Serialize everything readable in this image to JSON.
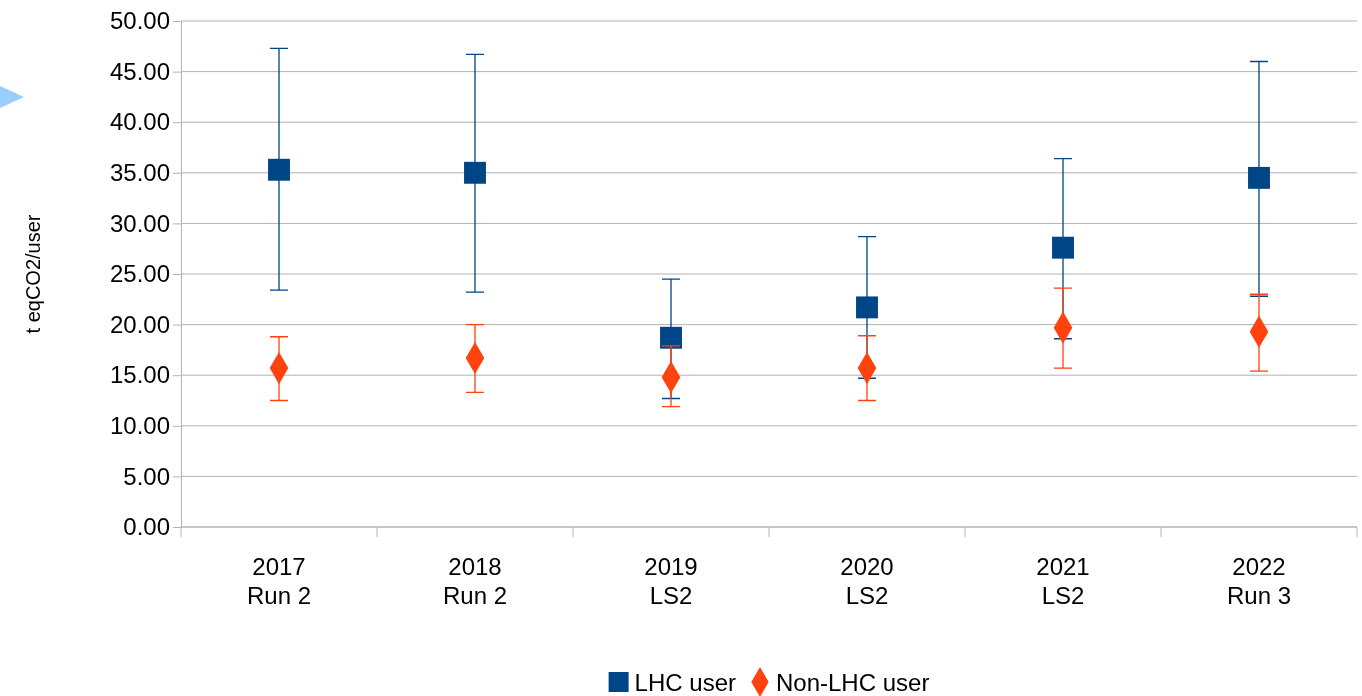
{
  "chart_data": {
    "type": "scatter",
    "ylabel": "t eqCO2/user",
    "categories": [
      "2017\nRun 2",
      "2018\nRun 2",
      "2019\nLS2",
      "2020\nLS2",
      "2021\nLS2",
      "2022\nRun 3"
    ],
    "series": [
      {
        "name": "LHC user",
        "color": "#004586",
        "marker": "square",
        "values": [
          35.3,
          35.0,
          18.7,
          21.7,
          27.6,
          34.5
        ],
        "errors": [
          [
            23.4,
            47.3
          ],
          [
            23.2,
            46.7
          ],
          [
            12.7,
            24.5
          ],
          [
            14.7,
            28.7
          ],
          [
            18.6,
            36.4
          ],
          [
            22.8,
            46.0
          ]
        ]
      },
      {
        "name": "Non-LHC user",
        "color": "#ff420e",
        "marker": "diamond",
        "values": [
          15.7,
          16.7,
          14.8,
          15.7,
          19.7,
          19.3
        ],
        "errors": [
          [
            12.5,
            18.8
          ],
          [
            13.3,
            20.0
          ],
          [
            11.9,
            17.9
          ],
          [
            12.5,
            18.9
          ],
          [
            15.7,
            23.6
          ],
          [
            15.4,
            23.0
          ]
        ]
      }
    ],
    "ylim": [
      0,
      50
    ],
    "yticks": [
      {
        "value": 0,
        "label": "0.00"
      },
      {
        "value": 5,
        "label": "5.00"
      },
      {
        "value": 10,
        "label": "10.00"
      },
      {
        "value": 15,
        "label": "15.00"
      },
      {
        "value": 20,
        "label": "20.00"
      },
      {
        "value": 25,
        "label": "25.00"
      },
      {
        "value": 30,
        "label": "30.00"
      },
      {
        "value": 35,
        "label": "35.00"
      },
      {
        "value": 40,
        "label": "40.00"
      },
      {
        "value": 45,
        "label": "45.00"
      },
      {
        "value": 50,
        "label": "50.00"
      }
    ],
    "grid": "y",
    "legend": "bottom"
  }
}
